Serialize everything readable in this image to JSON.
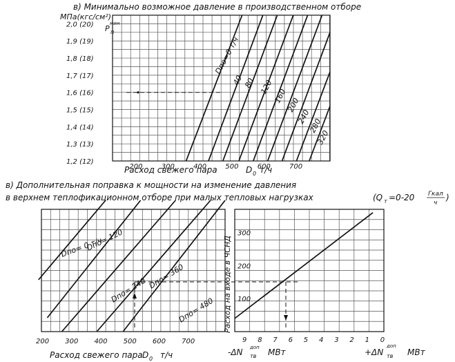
{
  "chart_data": [
    {
      "id": "top",
      "type": "line",
      "title": "в) Минимально возможное давление в производственном отборе",
      "ylabel_main": "МПа(кгс/см²)",
      "ylabel_symbol": "P",
      "ylabel_sub": "п",
      "ylabel_sup": "мин",
      "xlabel_text": "Расход   свежего   пара",
      "xlabel_sym": "D",
      "xlabel_sub": "0",
      "xlabel_unit": "т/ч",
      "xlim": [
        130,
        810
      ],
      "ylim": [
        1.2,
        2.05
      ],
      "x_ticks": [
        {
          "v": 200,
          "label": "200"
        },
        {
          "v": 300,
          "label": "300"
        },
        {
          "v": 400,
          "label": "400"
        },
        {
          "v": 500,
          "label": "500"
        },
        {
          "v": 600,
          "label": "600"
        },
        {
          "v": 700,
          "label": "700"
        }
      ],
      "y_ticks": [
        {
          "v": 2.0,
          "label": "2,0 (20)"
        },
        {
          "v": 1.9,
          "label": "1,9 (19)"
        },
        {
          "v": 1.8,
          "label": "1,8 (18)"
        },
        {
          "v": 1.7,
          "label": "1,7 (17)"
        },
        {
          "v": 1.6,
          "label": "1,6 (16)"
        },
        {
          "v": 1.5,
          "label": "1,5 (15)"
        },
        {
          "v": 1.4,
          "label": "1,4 (14)"
        },
        {
          "v": 1.3,
          "label": "1,3 (13)"
        },
        {
          "v": 1.2,
          "label": "1,2 (12)"
        }
      ],
      "series": [
        {
          "name": "Dпо=0 т/ч",
          "x": [
            360,
            535
          ],
          "y": [
            1.2,
            2.05
          ]
        },
        {
          "name": "40",
          "x": [
            430,
            600
          ],
          "y": [
            1.2,
            2.05
          ]
        },
        {
          "name": "80",
          "x": [
            475,
            645
          ],
          "y": [
            1.2,
            2.05
          ]
        },
        {
          "name": "120",
          "x": [
            525,
            695
          ],
          "y": [
            1.2,
            2.05
          ]
        },
        {
          "name": "160",
          "x": [
            570,
            740
          ],
          "y": [
            1.2,
            2.05
          ]
        },
        {
          "name": "200",
          "x": [
            615,
            785
          ],
          "y": [
            1.2,
            2.05
          ]
        },
        {
          "name": "240",
          "x": [
            660,
            810
          ],
          "y": [
            1.2,
            1.95
          ]
        },
        {
          "name": "280",
          "x": [
            705,
            810
          ],
          "y": [
            1.2,
            1.72
          ]
        },
        {
          "name": "320",
          "x": [
            745,
            810
          ],
          "y": [
            1.2,
            1.52
          ]
        }
      ],
      "reference_line": {
        "y": 1.6
      }
    },
    {
      "id": "bottom",
      "type": "line",
      "title_line1": "в) Дополнительная поправка к мощности на изменение давления",
      "title_line2": "в верхнем теплофикационном отборе при малых тепловых нагрузках",
      "title_q": "(Q",
      "title_q_sub": "т",
      "title_q_eq": "=0-20",
      "title_q_frac_num": "Гкал",
      "title_q_frac_den": "ч",
      "title_q_close": ")",
      "left": {
        "xlabel_text": "Расход свежего пара",
        "xlabel_sym": "D",
        "xlabel_sub": "0",
        "xlabel_unit": "т/ч",
        "xlim": [
          200,
          830
        ],
        "x_ticks": [
          {
            "v": 200,
            "label": "200"
          },
          {
            "v": 300,
            "label": "300"
          },
          {
            "v": 400,
            "label": "400"
          },
          {
            "v": 500,
            "label": "500"
          },
          {
            "v": 600,
            "label": "600"
          },
          {
            "v": 700,
            "label": "700"
          }
        ],
        "series": [
          {
            "name": "Dпо= 0 т/ч",
            "x": [
              190,
              420
            ],
            "y": [
              405,
              290
            ]
          },
          {
            "name": "Dпо= 120",
            "x": [
              220,
              540
            ],
            "y": [
              460,
              290
            ]
          },
          {
            "name": "Dпо= 240",
            "x": [
              270,
              660
            ],
            "y": [
              480,
              290
            ]
          },
          {
            "name": "Dпо= 360",
            "x": [
              390,
              780
            ],
            "y": [
              480,
              290
            ]
          },
          {
            "name": "Dпо= 480",
            "x": [
              480,
              830
            ],
            "y": [
              480,
              290
            ]
          }
        ]
      },
      "right": {
        "ylabel": "Расход на входе в ЧСНД",
        "xlabel_left": "-ΔN",
        "xlabel_left_sub": "тв",
        "xlabel_left_sup": "доп",
        "xlabel_left_unit": "МВт",
        "xlabel_right": "+ΔN",
        "xlabel_right_sub": "тв",
        "xlabel_right_sup": "доп",
        "xlabel_right_unit": "МВт",
        "x_ticks": [
          "9",
          "8",
          "7",
          "6",
          "5",
          "4",
          "3",
          "2",
          "1",
          "0"
        ],
        "y_ticks": [
          {
            "v": 100,
            "label": "100"
          },
          {
            "v": 200,
            "label": "200"
          },
          {
            "v": 300,
            "label": "300"
          }
        ],
        "ylim": [
          0,
          370
        ],
        "xlim": [
          9.5,
          0
        ],
        "series": [
          {
            "name": "поправка",
            "x": [
              9.5,
              0.7
            ],
            "y": [
              40,
              360
            ]
          }
        ]
      }
    }
  ]
}
